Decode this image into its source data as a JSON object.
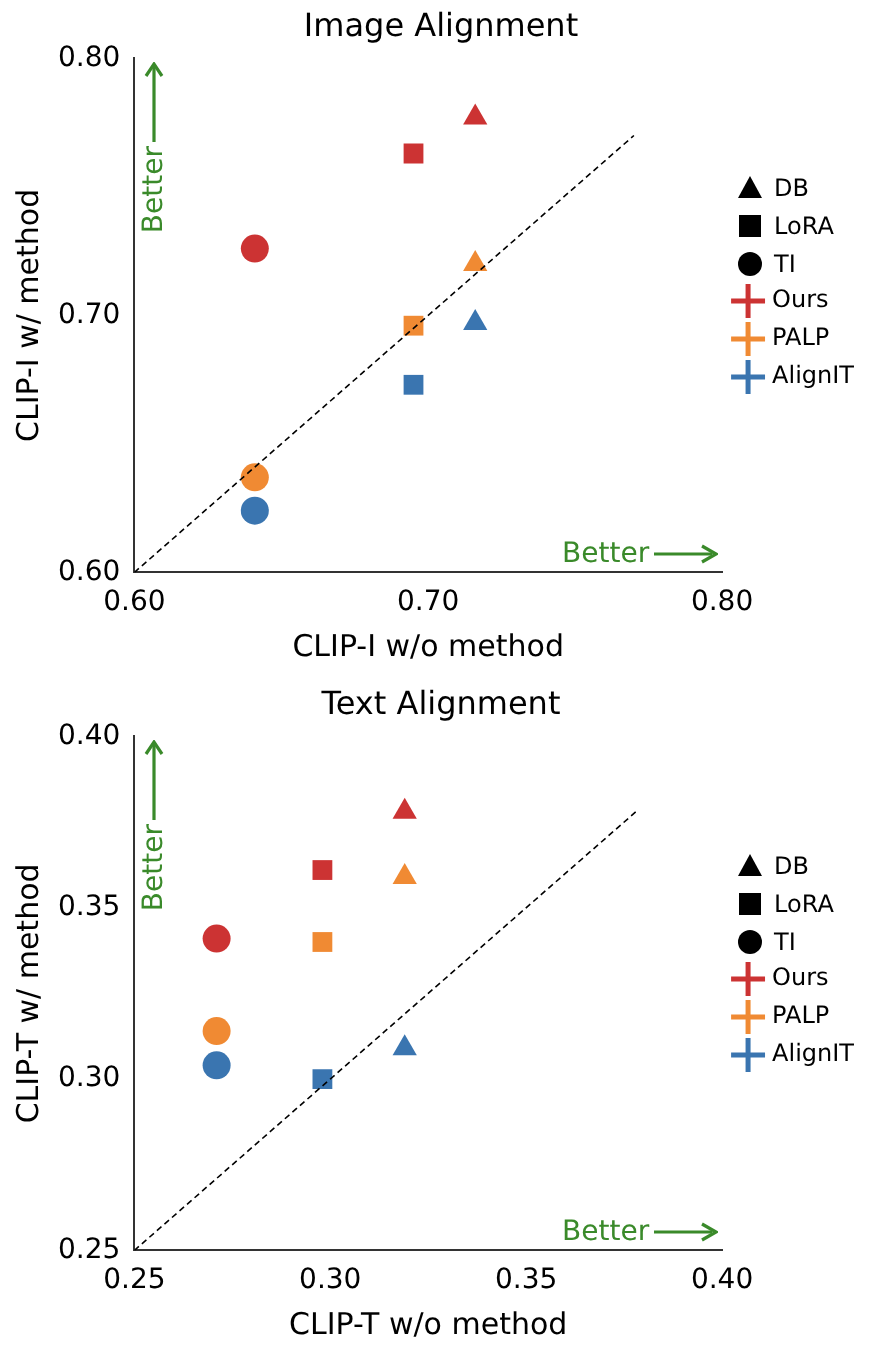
{
  "chart_data": [
    {
      "type": "scatter",
      "title": "Image Alignment",
      "xlabel": "CLIP-I w/o method",
      "ylabel": "CLIP-I w/ method",
      "xlim": [
        0.6,
        0.8
      ],
      "ylim": [
        0.6,
        0.8
      ],
      "xticks": [
        {
          "value": 0.6,
          "label": "0.60"
        },
        {
          "value": 0.7,
          "label": "0.70"
        },
        {
          "value": 0.8,
          "label": "0.80"
        }
      ],
      "yticks": [
        {
          "value": 0.6,
          "label": "0.60"
        },
        {
          "value": 0.7,
          "label": "0.70"
        },
        {
          "value": 0.8,
          "label": "0.80"
        }
      ],
      "grid": false,
      "legend": "right",
      "annotations": [
        "Better",
        "Better",
        "DB",
        "LoRA",
        "TI"
      ],
      "series": [
        {
          "type": "line",
          "x": [
            0.6,
            0.77
          ],
          "values": [
            0.6,
            0.77
          ],
          "color": "#000000",
          "line_style": "dashed",
          "marker": "none"
        },
        {
          "name": "Ours",
          "color": "#cc3333",
          "marker": "triangle",
          "x": [
            0.716
          ],
          "values": [
            0.777
          ]
        },
        {
          "color": "#cc3333",
          "marker": "square",
          "x": [
            0.695
          ],
          "values": [
            0.763
          ]
        },
        {
          "color": "#cc3333",
          "marker": "circle",
          "x": [
            0.641
          ],
          "values": [
            0.726
          ]
        },
        {
          "name": "PALP",
          "color": "#f08a33",
          "marker": "triangle",
          "x": [
            0.716
          ],
          "values": [
            0.72
          ]
        },
        {
          "color": "#f08a33",
          "marker": "square",
          "x": [
            0.695
          ],
          "values": [
            0.696
          ]
        },
        {
          "color": "#f08a33",
          "marker": "circle",
          "x": [
            0.641
          ],
          "values": [
            0.637
          ]
        },
        {
          "name": "AlignIT",
          "color": "#3a75b0",
          "marker": "triangle",
          "x": [
            0.716
          ],
          "values": [
            0.697
          ]
        },
        {
          "color": "#3a75b0",
          "marker": "square",
          "x": [
            0.695
          ],
          "values": [
            0.673
          ]
        },
        {
          "color": "#3a75b0",
          "marker": "circle",
          "x": [
            0.641
          ],
          "values": [
            0.624
          ]
        }
      ]
    },
    {
      "type": "scatter",
      "title": "Text Alignment",
      "xlabel": "CLIP-T w/o method",
      "ylabel": "CLIP-T w/ method",
      "xlim": [
        0.25,
        0.4
      ],
      "ylim": [
        0.25,
        0.4
      ],
      "xticks": [
        {
          "value": 0.25,
          "label": "0.25"
        },
        {
          "value": 0.3,
          "label": "0.30"
        },
        {
          "value": 0.35,
          "label": "0.35"
        },
        {
          "value": 0.4,
          "label": "0.40"
        }
      ],
      "yticks": [
        {
          "value": 0.25,
          "label": "0.25"
        },
        {
          "value": 0.3,
          "label": "0.30"
        },
        {
          "value": 0.35,
          "label": "0.35"
        },
        {
          "value": 0.4,
          "label": "0.40"
        }
      ],
      "grid": false,
      "legend": "right",
      "annotations": [
        "Better",
        "Better",
        "DB",
        "LoRA",
        "TI"
      ],
      "series": [
        {
          "type": "line",
          "x": [
            0.25,
            0.378
          ],
          "values": [
            0.25,
            0.378
          ],
          "color": "#000000",
          "line_style": "dashed",
          "marker": "none"
        },
        {
          "name": "Ours",
          "color": "#cc3333",
          "marker": "triangle",
          "x": [
            0.319
          ],
          "values": [
            0.378
          ]
        },
        {
          "color": "#cc3333",
          "marker": "square",
          "x": [
            0.298
          ],
          "values": [
            0.361
          ]
        },
        {
          "color": "#cc3333",
          "marker": "circle",
          "x": [
            0.271
          ],
          "values": [
            0.341
          ]
        },
        {
          "name": "PALP",
          "color": "#f08a33",
          "marker": "triangle",
          "x": [
            0.319
          ],
          "values": [
            0.359
          ]
        },
        {
          "color": "#f08a33",
          "marker": "square",
          "x": [
            0.298
          ],
          "values": [
            0.34
          ]
        },
        {
          "color": "#f08a33",
          "marker": "circle",
          "x": [
            0.271
          ],
          "values": [
            0.314
          ]
        },
        {
          "name": "AlignIT",
          "color": "#3a75b0",
          "marker": "triangle",
          "x": [
            0.319
          ],
          "values": [
            0.309
          ]
        },
        {
          "color": "#3a75b0",
          "marker": "square",
          "x": [
            0.298
          ],
          "values": [
            0.3
          ]
        },
        {
          "color": "#3a75b0",
          "marker": "circle",
          "x": [
            0.271
          ],
          "values": [
            0.304
          ]
        }
      ]
    }
  ]
}
